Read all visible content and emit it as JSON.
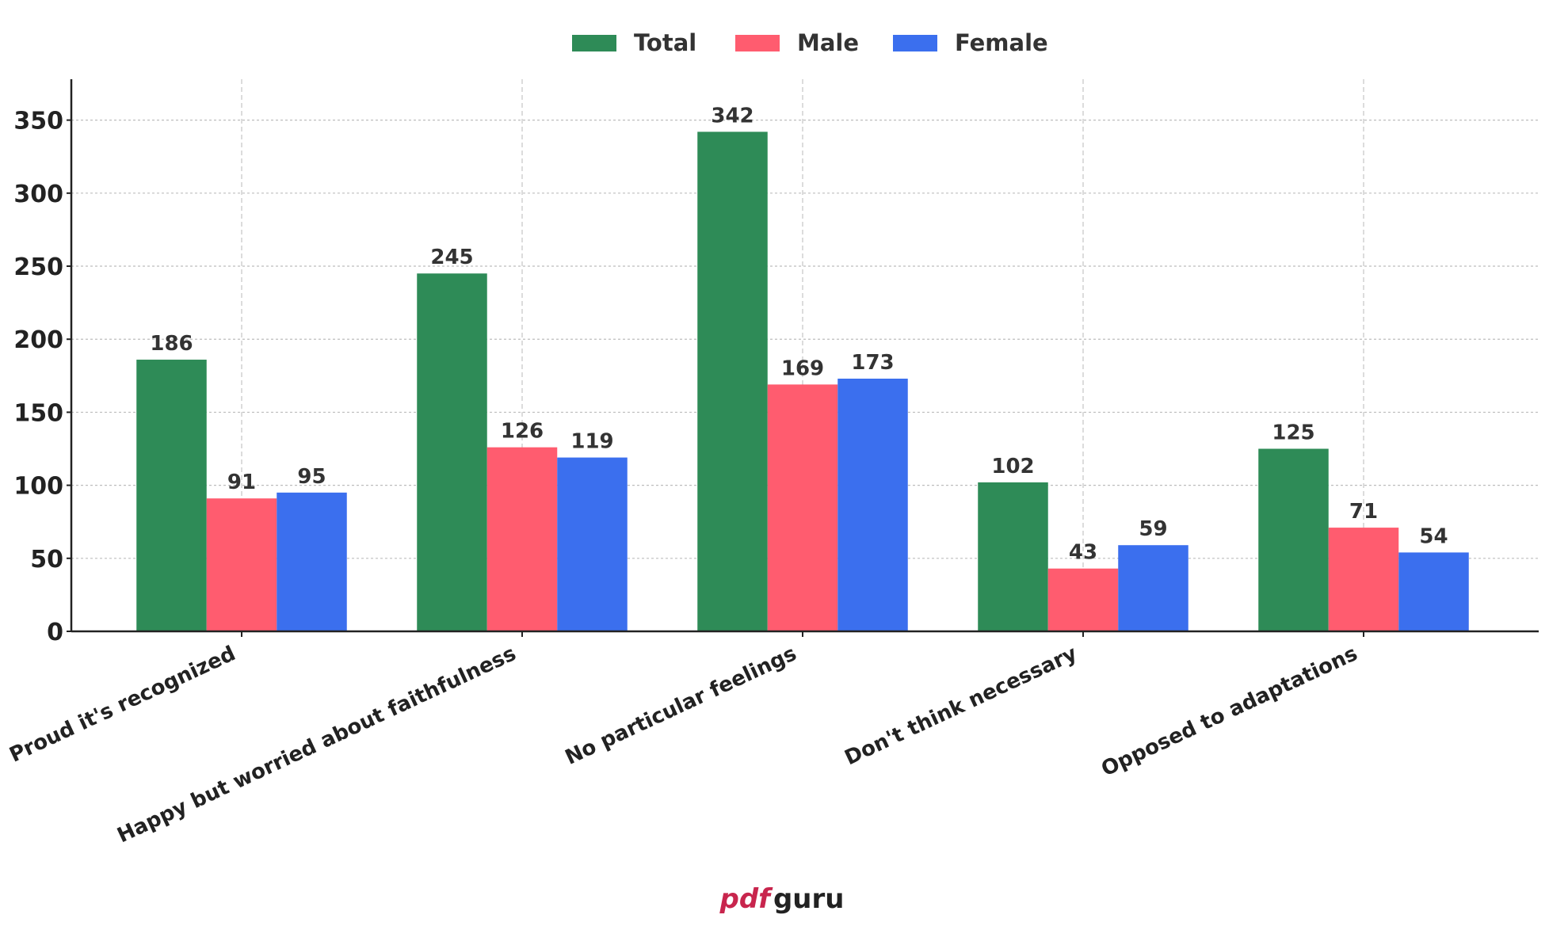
{
  "chart_data": {
    "type": "bar",
    "categories": [
      "Proud it's recognized",
      "Happy but worried about faithfulness",
      "No particular feelings",
      "Don't think necessary",
      "Opposed to adaptations"
    ],
    "series": [
      {
        "name": "Total",
        "color": "#2e8b57",
        "values": [
          186,
          245,
          342,
          102,
          125
        ]
      },
      {
        "name": "Male",
        "color": "#ff5c6f",
        "values": [
          91,
          126,
          169,
          43,
          71
        ]
      },
      {
        "name": "Female",
        "color": "#3b6fee",
        "values": [
          95,
          119,
          173,
          59,
          54
        ]
      }
    ],
    "yticks": [
      0,
      50,
      100,
      150,
      200,
      250,
      300,
      350
    ],
    "ylim": [
      0,
      378
    ],
    "grid": true,
    "legend_position": "top-center"
  },
  "logo": {
    "prefix": "pdf",
    "suffix": "guru",
    "prefix_color": "#c8254d",
    "suffix_color": "#222222"
  }
}
